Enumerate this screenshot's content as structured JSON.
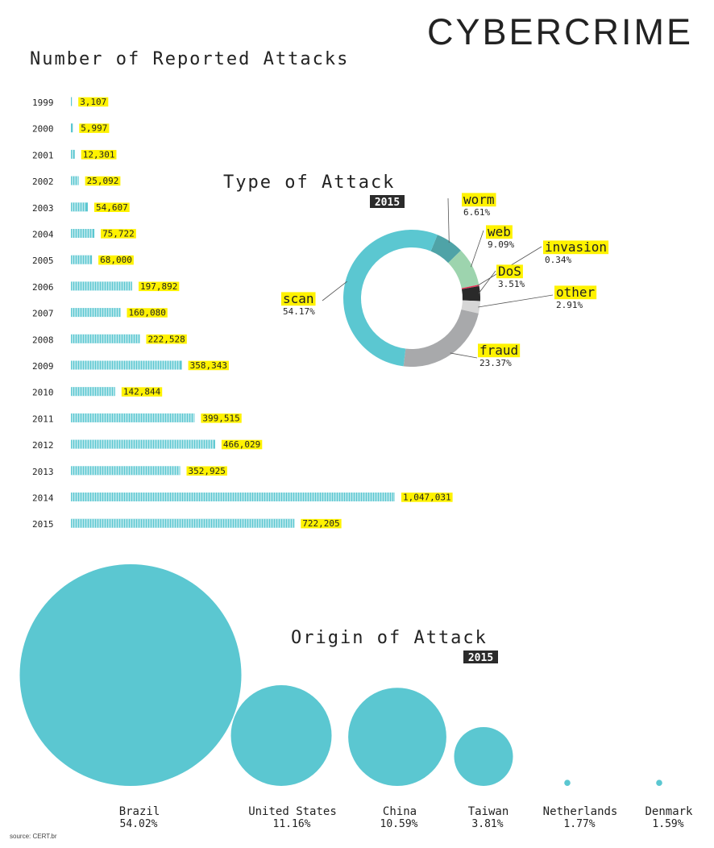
{
  "page": {
    "title": "CYBERCRIME",
    "source": "source: CERT.br"
  },
  "colors": {
    "bar": "#5bc7d1",
    "highlight": "#fff200",
    "ink": "#222222",
    "badge": "#2b2b2b",
    "bubble": "#5bc7d1"
  },
  "chart_data": [
    {
      "type": "bar",
      "title": "Number of Reported Attacks",
      "orientation": "horizontal",
      "categories": [
        "1999",
        "2000",
        "2001",
        "2002",
        "2003",
        "2004",
        "2005",
        "2006",
        "2007",
        "2008",
        "2009",
        "2010",
        "2011",
        "2012",
        "2013",
        "2014",
        "2015"
      ],
      "values": [
        3107,
        5997,
        12301,
        25092,
        54607,
        75722,
        68000,
        197892,
        160080,
        222528,
        358343,
        142844,
        399515,
        466029,
        352925,
        1047031,
        722205
      ],
      "value_labels": [
        "3,107",
        "5,997",
        "12,301",
        "25,092",
        "54,607",
        "75,722",
        "68,000",
        "197,892",
        "160,080",
        "222,528",
        "358,343",
        "142,844",
        "399,515",
        "466,029",
        "352,925",
        "1,047,031",
        "722,205"
      ]
    },
    {
      "type": "pie",
      "style": "donut",
      "title": "Type of Attack",
      "subtitle": "2015",
      "slices": [
        {
          "label": "worm",
          "value": 6.61,
          "value_label": "6.61%",
          "color": "#4fa3a7"
        },
        {
          "label": "web",
          "value": 9.09,
          "value_label": "9.09%",
          "color": "#9dd4ae"
        },
        {
          "label": "invasion",
          "value": 0.34,
          "value_label": "0.34%",
          "color": "#e8355a"
        },
        {
          "label": "DoS",
          "value": 3.51,
          "value_label": "3.51%",
          "color": "#2a2a2a"
        },
        {
          "label": "other",
          "value": 2.91,
          "value_label": "2.91%",
          "color": "#d6d6d6"
        },
        {
          "label": "fraud",
          "value": 23.37,
          "value_label": "23.37%",
          "color": "#a8a9ab"
        },
        {
          "label": "scan",
          "value": 54.17,
          "value_label": "54.17%",
          "color": "#5bc7d1"
        }
      ]
    },
    {
      "type": "bubble",
      "title": "Origin of Attack",
      "subtitle": "2015",
      "categories": [
        "Brazil",
        "United States",
        "China",
        "Taiwan",
        "Netherlands",
        "Denmark"
      ],
      "values": [
        54.02,
        11.16,
        10.59,
        3.81,
        1.77,
        1.59
      ],
      "value_labels": [
        "54.02%",
        "11.16%",
        "10.59%",
        "3.81%",
        "1.77%",
        "1.59%"
      ]
    }
  ]
}
